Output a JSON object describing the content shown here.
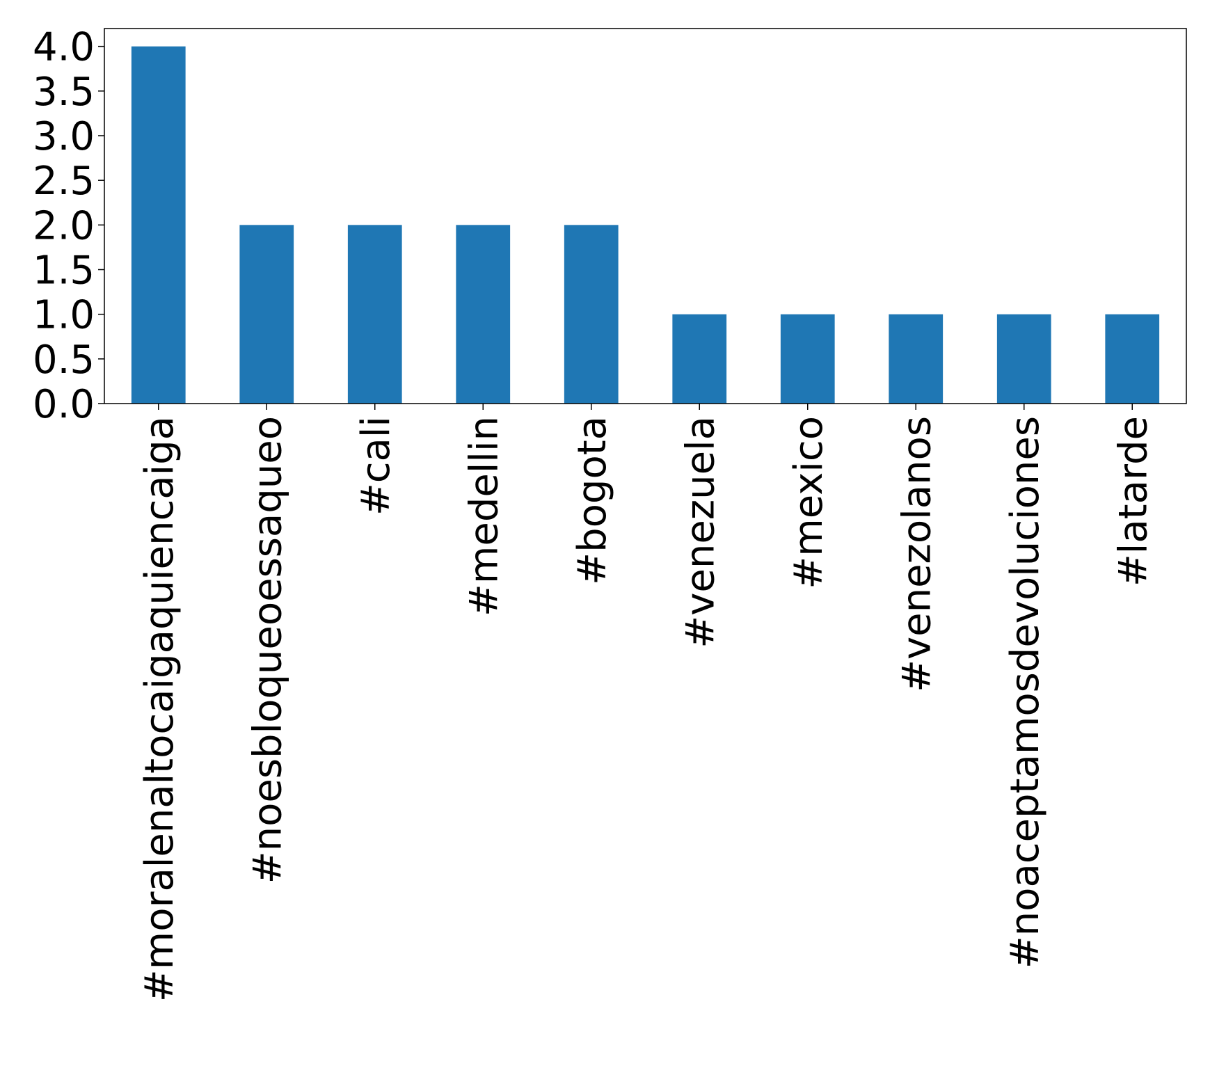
{
  "chart_data": {
    "type": "bar",
    "categories": [
      "#moralenaltocaigaquiencaiga",
      "#noesbloqueoessaqueo",
      "#cali",
      "#medellin",
      "#bogota",
      "#venezuela",
      "#mexico",
      "#venezolanos",
      "#noaceptamosdevoluciones",
      "#latarde"
    ],
    "values": [
      4,
      2,
      2,
      2,
      2,
      1,
      1,
      1,
      1,
      1
    ],
    "title": "",
    "xlabel": "",
    "ylabel": "",
    "ylim": [
      0,
      4.2
    ],
    "yticks": [
      0.0,
      0.5,
      1.0,
      1.5,
      2.0,
      2.5,
      3.0,
      3.5,
      4.0
    ],
    "ytick_labels": [
      "0.0",
      "0.5",
      "1.0",
      "1.5",
      "2.0",
      "2.5",
      "3.0",
      "3.5",
      "4.0"
    ],
    "bar_color": "#1f77b4",
    "grid": false,
    "legend": "none",
    "x_tick_rotation": "vertical"
  }
}
